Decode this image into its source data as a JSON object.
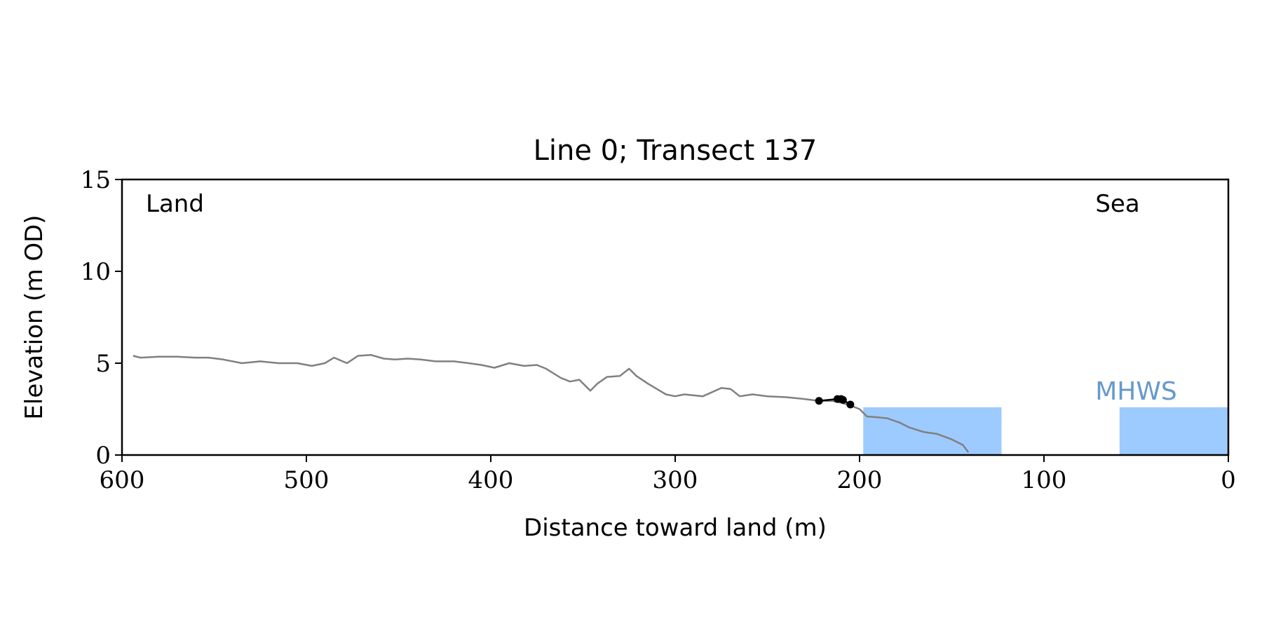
{
  "chart_data": {
    "type": "line",
    "title": "Line 0; Transect 137",
    "xlabel": "Distance toward land (m)",
    "ylabel": "Elevation (m OD)",
    "xlim": [
      600,
      0
    ],
    "ylim": [
      0,
      15
    ],
    "x_ticks": [
      600,
      500,
      400,
      300,
      200,
      100,
      0
    ],
    "y_ticks": [
      0,
      5,
      10,
      15
    ],
    "grid": false,
    "annotations": {
      "land": "Land",
      "sea": "Sea",
      "mhws": "MHWS"
    },
    "colors": {
      "profile": "#808080",
      "points": "#000000",
      "water": "#9ecbff",
      "mhws_text": "#6699cc",
      "axis": "#000000"
    },
    "mhws_level": 2.6,
    "water_regions": [
      {
        "from": 198,
        "to": 123
      },
      {
        "from": 59,
        "to": 0
      }
    ],
    "series": [
      {
        "type": "line",
        "x": [
          594,
          590,
          580,
          570,
          560,
          553,
          545,
          535,
          525,
          515,
          505,
          497,
          490,
          485,
          478,
          472,
          465,
          458,
          452,
          445,
          438,
          430,
          420,
          412,
          405,
          398,
          390,
          382,
          375,
          370,
          362,
          357,
          352,
          346,
          342,
          337,
          330,
          325,
          321,
          315,
          310,
          305,
          300,
          295,
          285,
          275,
          270,
          265,
          258,
          250,
          240,
          230,
          222,
          215,
          210,
          205,
          200,
          196,
          190,
          185,
          178,
          173,
          165,
          158,
          150,
          144,
          141
        ],
        "y": [
          5.4,
          5.3,
          5.35,
          5.35,
          5.3,
          5.3,
          5.2,
          5.0,
          5.1,
          5.0,
          5.0,
          4.85,
          5.0,
          5.3,
          5.0,
          5.4,
          5.45,
          5.25,
          5.2,
          5.25,
          5.2,
          5.1,
          5.1,
          5.0,
          4.9,
          4.75,
          5.0,
          4.85,
          4.9,
          4.7,
          4.2,
          4.0,
          4.1,
          3.5,
          3.9,
          4.25,
          4.3,
          4.7,
          4.3,
          3.9,
          3.6,
          3.3,
          3.2,
          3.3,
          3.2,
          3.65,
          3.6,
          3.2,
          3.3,
          3.2,
          3.15,
          3.05,
          2.95,
          2.95,
          2.85,
          2.7,
          2.5,
          2.1,
          2.05,
          2.0,
          1.75,
          1.5,
          1.25,
          1.15,
          0.85,
          0.55,
          0.15
        ]
      },
      {
        "type": "points",
        "x": [
          222,
          212,
          210,
          209,
          205
        ],
        "y": [
          2.95,
          3.05,
          3.05,
          3.0,
          2.75
        ]
      }
    ]
  }
}
